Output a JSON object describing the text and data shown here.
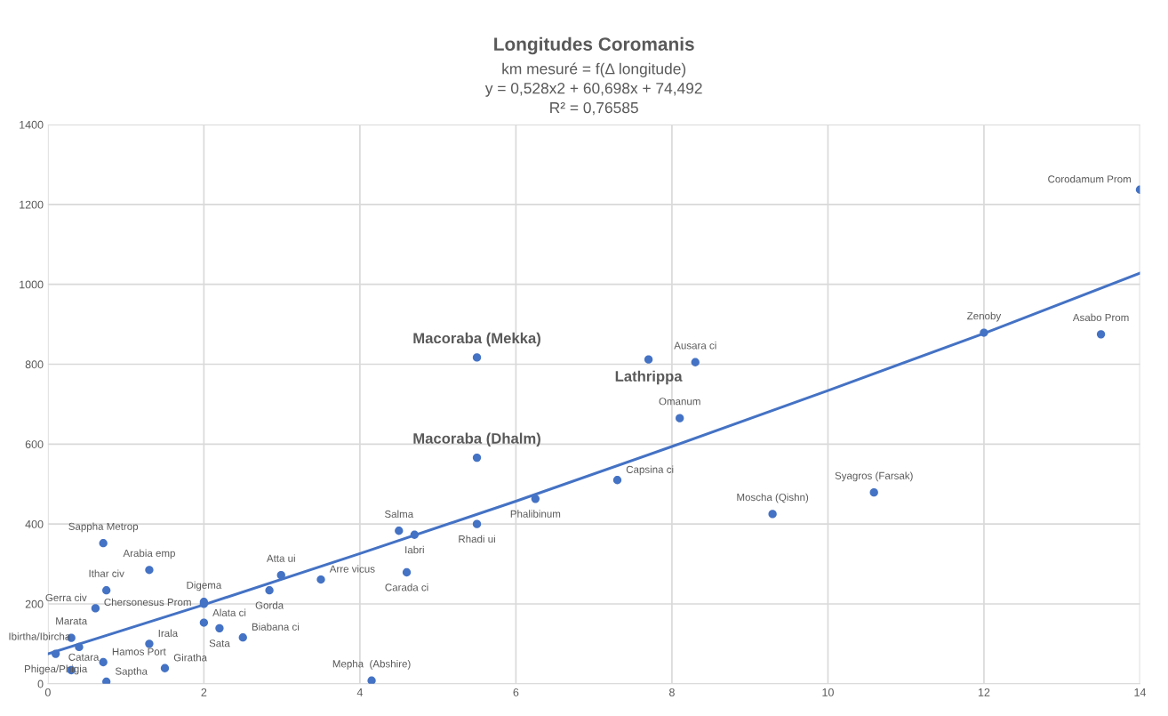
{
  "chart_data": {
    "type": "scatter",
    "title": "Longitudes Coromanis",
    "subtitle": "km mesuré = f(Δ longitude)\ny = 0,528x2 + 60,698x + 74,492\nR² = 0,76585",
    "series": [
      {
        "color": "#4472c4",
        "marker": "circle",
        "x": [
          14,
          13.5,
          12,
          10.59,
          9.29,
          8.1,
          8.3,
          7.3,
          6.25,
          5.5,
          4.5,
          4.7,
          4.6,
          3.5,
          2.99,
          2.84,
          2.0,
          2.0,
          2.0,
          2.2,
          2.5,
          4.15,
          1.5,
          1.3,
          1.3,
          0.71,
          0.75,
          0.61,
          0.3,
          0.4,
          0.1,
          0.71,
          0.3,
          0.75
        ],
        "values": [
          1237,
          875,
          879,
          479,
          425,
          665,
          805,
          510,
          463,
          400,
          383,
          373,
          279,
          261,
          272,
          234,
          205,
          200,
          153,
          139,
          116,
          8,
          39,
          100,
          285,
          352,
          234,
          189,
          115,
          92,
          75,
          54,
          34,
          5
        ],
        "value_labels": [
          "Corodamum Prom",
          "Asabo Prom",
          "Zenoby",
          "Syagros (Farsak)",
          "Moscha (Qishn)",
          "Omanum",
          "Ausara ci",
          "Capsina ci",
          "Phalibinum",
          "Rhadi ui",
          "Salma",
          "Iabri",
          "Carada ci",
          "Arre vicus",
          "Atta ui",
          "Gorda",
          "Digema",
          "Alata ci",
          "Chersonesus Prom",
          "Sata",
          "Biabana ci",
          "Mepha  (Abshire)",
          "Giratha",
          "Irala",
          "Arabia emp",
          "Sappha Metrop",
          "Ithar civ",
          "Gerra civ",
          "Marata",
          "Ibirtha/Ibircha",
          "Phigea/Phigia",
          "Hamos Port",
          "Catara",
          "Saptha"
        ]
      },
      {
        "color": "#4472c4",
        "marker": "circle",
        "x": [
          5.5,
          5.5,
          7.7
        ],
        "values": [
          817,
          566,
          812
        ],
        "value_labels": [
          "Macoraba (Mekka)",
          "Macoraba (Dhalm)",
          "Lathrippa"
        ]
      },
      {
        "type": "line",
        "color": "#4472c4",
        "marker": "none",
        "x": [
          0,
          2,
          4,
          6,
          8,
          10,
          12,
          14
        ],
        "values": [
          75,
          198,
          326,
          457,
          594,
          734,
          877,
          1028
        ]
      }
    ],
    "xlim": [
      0,
      14
    ],
    "xticks": [
      0,
      2,
      4,
      6,
      8,
      10,
      12,
      14
    ],
    "ylim": [
      0,
      1400
    ],
    "yticks": [
      0,
      200,
      400,
      600,
      800,
      1000,
      1200,
      1400
    ],
    "grid": true,
    "line_style": "solid",
    "legend": false
  }
}
